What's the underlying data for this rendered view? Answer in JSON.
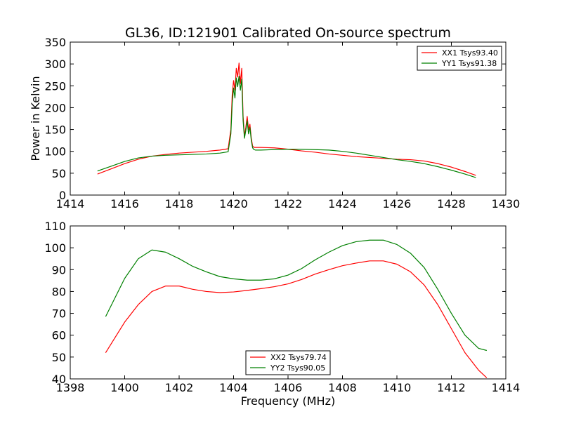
{
  "figure": {
    "title": "GL36, ID:121901 Calibrated On-source spectrum",
    "xlabel": "Frequency (MHz)",
    "ylabel": "Power in Kelvin"
  },
  "chart_data": [
    {
      "type": "line",
      "title": "GL36, ID:121901 Calibrated On-source spectrum",
      "xlabel": "",
      "ylabel": "Power in Kelvin",
      "xlim": [
        1414,
        1430
      ],
      "ylim": [
        0,
        350
      ],
      "xticks": [
        "1414",
        "1416",
        "1418",
        "1420",
        "1422",
        "1424",
        "1426",
        "1428",
        "1430"
      ],
      "yticks": [
        "0",
        "50",
        "100",
        "150",
        "200",
        "250",
        "300",
        "350"
      ],
      "grid": false,
      "legend_position": "top-right",
      "series": [
        {
          "name": "XX1 Tsys93.40",
          "color": "#ff0000",
          "x": [
            1415.0,
            1415.5,
            1416.0,
            1416.5,
            1417.0,
            1417.5,
            1418.0,
            1418.5,
            1419.0,
            1419.5,
            1419.8,
            1419.9,
            1419.95,
            1420.0,
            1420.05,
            1420.1,
            1420.15,
            1420.2,
            1420.25,
            1420.3,
            1420.35,
            1420.4,
            1420.45,
            1420.5,
            1420.55,
            1420.6,
            1420.65,
            1420.7,
            1420.75,
            1420.8,
            1421.0,
            1421.5,
            1422.0,
            1422.5,
            1423.0,
            1423.5,
            1424.0,
            1424.5,
            1425.0,
            1425.5,
            1426.0,
            1426.5,
            1427.0,
            1427.5,
            1428.0,
            1428.5,
            1428.9
          ],
          "y": [
            48,
            60,
            72,
            82,
            89,
            93,
            96,
            98,
            100,
            103,
            106,
            150,
            230,
            262,
            240,
            290,
            270,
            302,
            255,
            290,
            180,
            135,
            155,
            180,
            150,
            162,
            130,
            112,
            109,
            109,
            109,
            108,
            105,
            101,
            98,
            94,
            91,
            88,
            86,
            84,
            82,
            81,
            78,
            72,
            64,
            54,
            45
          ]
        },
        {
          "name": "YY1 Tsys91.38",
          "color": "#008000",
          "x": [
            1415.0,
            1415.5,
            1416.0,
            1416.5,
            1417.0,
            1417.5,
            1418.0,
            1418.5,
            1419.0,
            1419.5,
            1419.8,
            1419.9,
            1419.95,
            1420.0,
            1420.05,
            1420.1,
            1420.15,
            1420.2,
            1420.25,
            1420.3,
            1420.35,
            1420.4,
            1420.45,
            1420.5,
            1420.55,
            1420.6,
            1420.65,
            1420.7,
            1420.75,
            1420.8,
            1421.0,
            1421.5,
            1422.0,
            1422.5,
            1423.0,
            1423.5,
            1424.0,
            1424.5,
            1425.0,
            1425.5,
            1426.0,
            1426.5,
            1427.0,
            1427.5,
            1428.0,
            1428.5,
            1428.9
          ],
          "y": [
            55,
            66,
            77,
            85,
            89,
            91,
            92,
            93,
            94,
            96,
            99,
            140,
            210,
            245,
            222,
            268,
            248,
            272,
            240,
            265,
            170,
            130,
            148,
            170,
            140,
            155,
            125,
            108,
            104,
            103,
            103,
            104,
            105,
            105,
            104,
            103,
            100,
            96,
            91,
            86,
            81,
            77,
            72,
            65,
            57,
            48,
            40
          ]
        }
      ]
    },
    {
      "type": "line",
      "title": "",
      "xlabel": "Frequency (MHz)",
      "ylabel": "",
      "xlim": [
        1398,
        1414
      ],
      "ylim": [
        40,
        110
      ],
      "xticks": [
        "1398",
        "1400",
        "1402",
        "1404",
        "1406",
        "1408",
        "1410",
        "1412",
        "1414"
      ],
      "yticks": [
        "40",
        "50",
        "60",
        "70",
        "80",
        "90",
        "100",
        "110"
      ],
      "grid": false,
      "legend_position": "bottom-center",
      "series": [
        {
          "name": "XX2 Tsys79.74",
          "color": "#ff0000",
          "x": [
            1399.3,
            1399.6,
            1400.0,
            1400.5,
            1401.0,
            1401.5,
            1402.0,
            1402.5,
            1403.0,
            1403.5,
            1404.0,
            1404.5,
            1405.0,
            1405.5,
            1406.0,
            1406.5,
            1407.0,
            1407.5,
            1408.0,
            1408.5,
            1409.0,
            1409.5,
            1410.0,
            1410.5,
            1411.0,
            1411.5,
            1412.0,
            1412.5,
            1413.0,
            1413.3
          ],
          "y": [
            52,
            58,
            66,
            74,
            80,
            82.5,
            82.5,
            81,
            80,
            79.5,
            79.8,
            80.5,
            81.3,
            82.2,
            83.5,
            85.5,
            88,
            90,
            91.8,
            93,
            94,
            94,
            92.5,
            89,
            83,
            74,
            63,
            52,
            44,
            40.5
          ]
        },
        {
          "name": "YY2 Tsys90.05",
          "color": "#008000",
          "x": [
            1399.3,
            1399.6,
            1400.0,
            1400.5,
            1401.0,
            1401.5,
            1402.0,
            1402.5,
            1403.0,
            1403.5,
            1404.0,
            1404.5,
            1405.0,
            1405.5,
            1406.0,
            1406.5,
            1407.0,
            1407.5,
            1408.0,
            1408.5,
            1409.0,
            1409.5,
            1410.0,
            1410.5,
            1411.0,
            1411.5,
            1412.0,
            1412.5,
            1413.0,
            1413.3
          ],
          "y": [
            68.5,
            76,
            86,
            95,
            99,
            98,
            95,
            91.5,
            89,
            86.8,
            85.8,
            85.2,
            85.2,
            85.8,
            87.5,
            90.5,
            94.5,
            98,
            101,
            102.8,
            103.5,
            103.5,
            101.5,
            97.5,
            91,
            81,
            70,
            60,
            54,
            53
          ]
        }
      ]
    }
  ]
}
